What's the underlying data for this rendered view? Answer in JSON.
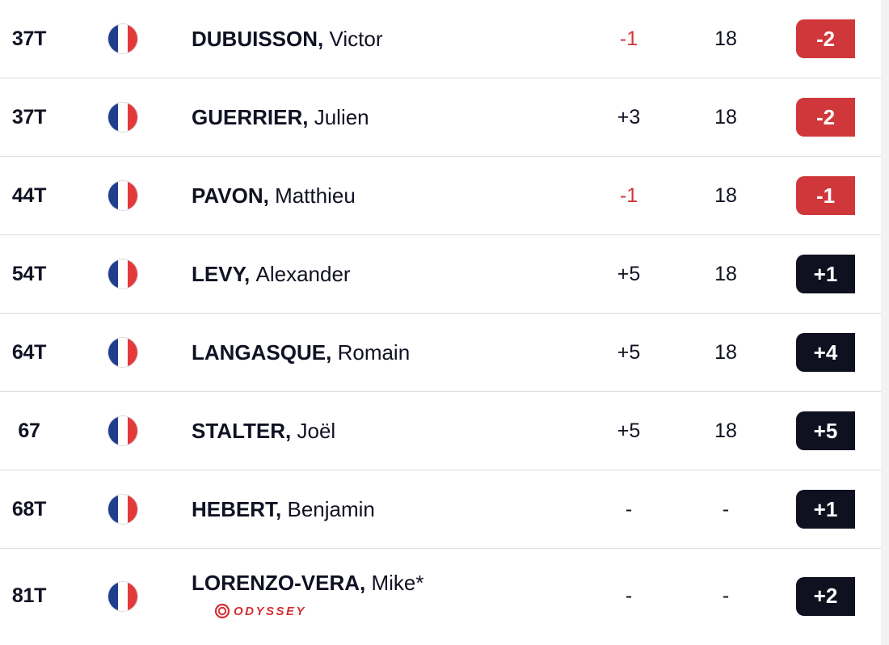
{
  "colors": {
    "under_par": "#d0373a",
    "over_par": "#0f1121",
    "text": "#101223",
    "divider": "#dcdcdc"
  },
  "rows": [
    {
      "pos": "37T",
      "country": "FRA",
      "last": "DUBUISSON,",
      "first": "Victor",
      "today": "-1",
      "thru": "18",
      "total": "-2"
    },
    {
      "pos": "37T",
      "country": "FRA",
      "last": "GUERRIER,",
      "first": "Julien",
      "today": "+3",
      "thru": "18",
      "total": "-2"
    },
    {
      "pos": "44T",
      "country": "FRA",
      "last": "PAVON,",
      "first": "Matthieu",
      "today": "-1",
      "thru": "18",
      "total": "-1"
    },
    {
      "pos": "54T",
      "country": "FRA",
      "last": "LEVY,",
      "first": "Alexander",
      "today": "+5",
      "thru": "18",
      "total": "+1"
    },
    {
      "pos": "64T",
      "country": "FRA",
      "last": "LANGASQUE,",
      "first": "Romain",
      "today": "+5",
      "thru": "18",
      "total": "+4"
    },
    {
      "pos": "67",
      "country": "FRA",
      "last": "STALTER,",
      "first": "Joël",
      "today": "+5",
      "thru": "18",
      "total": "+5"
    },
    {
      "pos": "68T",
      "country": "FRA",
      "last": "HEBERT,",
      "first": "Benjamin",
      "today": "-",
      "thru": "-",
      "total": "+1"
    },
    {
      "pos": "81T",
      "country": "FRA",
      "last": "LORENZO-VERA,",
      "first": "Mike*",
      "today": "-",
      "thru": "-",
      "total": "+2",
      "sponsor": "ODYSSEY"
    }
  ]
}
